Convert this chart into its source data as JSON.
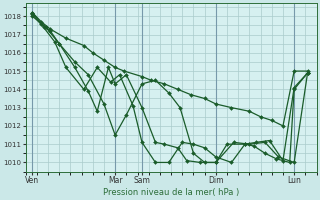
{
  "xlabel": "Pression niveau de la mer( hPa )",
  "background_color": "#cbe8e8",
  "plot_bg_color": "#d6f0f0",
  "grid_color": "#aacccc",
  "line_color": "#1a5c2a",
  "ylim": [
    1009.5,
    1018.7
  ],
  "yticks": [
    1010,
    1011,
    1012,
    1013,
    1014,
    1015,
    1016,
    1017,
    1018
  ],
  "xlim": [
    0,
    13.0
  ],
  "day_ticks": [
    0.3,
    4.0,
    5.2,
    8.5,
    12.0
  ],
  "day_labels": [
    "Ven",
    "Mar",
    "Sam",
    "Dim",
    "Lun"
  ],
  "vline_positions": [
    0.3,
    4.0,
    5.2,
    8.5,
    12.0
  ],
  "series1_x": [
    0.3,
    0.7,
    1.1,
    1.8,
    2.6,
    3.0,
    3.5,
    4.0,
    4.4,
    5.2,
    5.6,
    6.2,
    6.8,
    7.4,
    8.0,
    8.5,
    9.2,
    10.0,
    10.5,
    11.0,
    11.5,
    12.0,
    12.6
  ],
  "series1_y": [
    1018.2,
    1017.7,
    1017.3,
    1016.8,
    1016.4,
    1016.0,
    1015.6,
    1015.2,
    1015.0,
    1014.7,
    1014.5,
    1014.3,
    1014.0,
    1013.7,
    1013.5,
    1013.2,
    1013.0,
    1012.8,
    1012.5,
    1012.3,
    1012.0,
    1015.0,
    1015.0
  ],
  "series2_x": [
    0.3,
    0.9,
    1.5,
    2.2,
    2.8,
    3.5,
    4.0,
    4.5,
    5.2,
    5.8,
    6.4,
    6.9,
    7.5,
    8.0,
    8.5,
    9.3,
    10.0,
    10.7,
    11.3,
    12.0,
    12.6
  ],
  "series2_y": [
    1018.0,
    1017.4,
    1016.5,
    1015.5,
    1014.8,
    1013.2,
    1011.5,
    1012.6,
    1014.3,
    1014.5,
    1013.8,
    1013.0,
    1010.5,
    1010.0,
    1010.0,
    1011.1,
    1011.0,
    1011.1,
    1010.3,
    1010.0,
    1014.9
  ],
  "series3_x": [
    0.3,
    0.7,
    1.1,
    1.5,
    2.2,
    2.8,
    3.2,
    3.7,
    4.0,
    4.5,
    5.2,
    5.8,
    6.2,
    6.8,
    7.2,
    7.8,
    8.5,
    9.0,
    9.8,
    10.2,
    10.7,
    11.2,
    11.8,
    12.0,
    12.6
  ],
  "series3_y": [
    1018.2,
    1017.6,
    1017.2,
    1016.5,
    1015.2,
    1013.9,
    1012.8,
    1015.2,
    1014.3,
    1014.8,
    1013.0,
    1011.1,
    1011.0,
    1010.8,
    1010.1,
    1010.0,
    1010.0,
    1011.0,
    1011.0,
    1010.9,
    1010.5,
    1010.2,
    1010.0,
    1014.0,
    1014.9
  ],
  "series4_x": [
    0.3,
    0.8,
    1.3,
    1.8,
    2.6,
    3.2,
    3.8,
    4.2,
    4.8,
    5.2,
    5.8,
    6.4,
    7.0,
    7.5,
    8.0,
    8.5,
    9.2,
    9.8,
    10.3,
    10.9,
    11.5,
    12.0,
    12.6
  ],
  "series4_y": [
    1018.1,
    1017.4,
    1016.6,
    1015.2,
    1014.0,
    1015.2,
    1014.4,
    1014.8,
    1013.1,
    1011.1,
    1010.0,
    1010.0,
    1011.1,
    1011.0,
    1010.8,
    1010.3,
    1010.0,
    1011.0,
    1011.1,
    1011.2,
    1010.1,
    1014.1,
    1014.9
  ]
}
